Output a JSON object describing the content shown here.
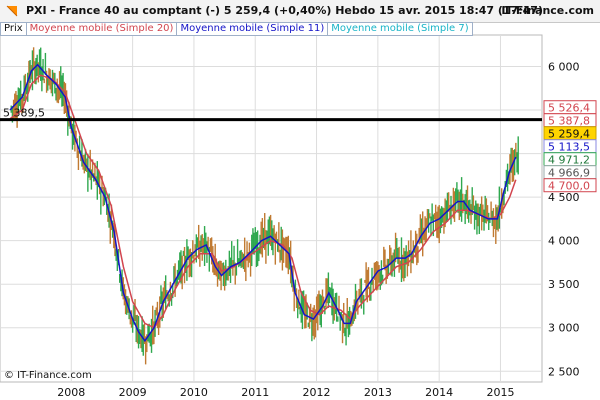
{
  "header": {
    "title": "PXI - France 40 au comptant (-)   5 259,4 (+0,40%)   Hebdo  15 avr. 2015 18:47 (17:47)",
    "brand": "IT-Finance.com"
  },
  "legend": {
    "prix": "Prix",
    "ma20": "Moyenne mobile (Simple 20)",
    "ma11": "Moyenne mobile (Simple 11)",
    "ma7": "Moyenne mobile (Simple 7)"
  },
  "footer": {
    "copyright": "© IT-Finance.com"
  },
  "colors": {
    "ma20": "#d2454f",
    "ma11": "#1414c8",
    "ma7": "#19b4c8",
    "up": "#2fa84f",
    "down": "#c07a32",
    "grid": "#dddddd",
    "highlight": "#ffd400"
  },
  "chart_data": {
    "type": "line",
    "x_axis": {
      "tick_labels": [
        "2008",
        "2009",
        "2010",
        "2011",
        "2012",
        "2013",
        "2014",
        "2015"
      ],
      "range": [
        2007.0,
        2015.4
      ]
    },
    "y_axis": {
      "tick_labels": [
        "2 500",
        "3 000",
        "3 500",
        "4 000",
        "4 500",
        "5 000",
        "5 500",
        "6 000"
      ],
      "ticks": [
        2500,
        3000,
        3500,
        4000,
        4500,
        5000,
        5500,
        6000
      ],
      "range": [
        2400,
        6350
      ],
      "position": "right"
    },
    "horizontal_line": {
      "value": 5389.5,
      "label": "5 389,5"
    },
    "price_labels": [
      {
        "label": "5 526,4",
        "value": 5526.4,
        "style": "red"
      },
      {
        "label": "5 387,8",
        "value": 5387.8,
        "style": "red"
      },
      {
        "label": "5 259,4",
        "value": 5259.4,
        "style": "current"
      },
      {
        "label": "5 113,5",
        "value": 5113.5,
        "style": "blue"
      },
      {
        "label": "4 971,2",
        "value": 4971.2,
        "style": "green"
      },
      {
        "label": "4 966,9",
        "value": 4966.9,
        "style": "grey"
      },
      {
        "label": "4 700,0",
        "value": 4700.0,
        "style": "red"
      }
    ],
    "series": [
      {
        "name": "Moyenne mobile (Simple 11)",
        "color": "#1414c8",
        "points": [
          [
            2007.0,
            5500
          ],
          [
            2007.2,
            5650
          ],
          [
            2007.35,
            5950
          ],
          [
            2007.45,
            6020
          ],
          [
            2007.6,
            5900
          ],
          [
            2007.75,
            5800
          ],
          [
            2007.9,
            5650
          ],
          [
            2008.0,
            5300
          ],
          [
            2008.2,
            4900
          ],
          [
            2008.4,
            4700
          ],
          [
            2008.55,
            4500
          ],
          [
            2008.7,
            4100
          ],
          [
            2008.85,
            3400
          ],
          [
            2009.0,
            3100
          ],
          [
            2009.1,
            2950
          ],
          [
            2009.2,
            2850
          ],
          [
            2009.35,
            3000
          ],
          [
            2009.5,
            3300
          ],
          [
            2009.7,
            3550
          ],
          [
            2009.9,
            3800
          ],
          [
            2010.05,
            3900
          ],
          [
            2010.2,
            3950
          ],
          [
            2010.35,
            3700
          ],
          [
            2010.45,
            3600
          ],
          [
            2010.6,
            3700
          ],
          [
            2010.75,
            3750
          ],
          [
            2010.9,
            3850
          ],
          [
            2011.1,
            4000
          ],
          [
            2011.25,
            4050
          ],
          [
            2011.4,
            3950
          ],
          [
            2011.55,
            3850
          ],
          [
            2011.65,
            3400
          ],
          [
            2011.8,
            3150
          ],
          [
            2011.95,
            3100
          ],
          [
            2012.1,
            3250
          ],
          [
            2012.2,
            3400
          ],
          [
            2012.35,
            3200
          ],
          [
            2012.45,
            3050
          ],
          [
            2012.55,
            3050
          ],
          [
            2012.65,
            3300
          ],
          [
            2012.8,
            3450
          ],
          [
            2013.0,
            3650
          ],
          [
            2013.15,
            3700
          ],
          [
            2013.3,
            3800
          ],
          [
            2013.45,
            3800
          ],
          [
            2013.55,
            3850
          ],
          [
            2013.7,
            4050
          ],
          [
            2013.85,
            4200
          ],
          [
            2014.0,
            4250
          ],
          [
            2014.15,
            4350
          ],
          [
            2014.3,
            4450
          ],
          [
            2014.4,
            4450
          ],
          [
            2014.5,
            4350
          ],
          [
            2014.65,
            4300
          ],
          [
            2014.8,
            4250
          ],
          [
            2014.95,
            4250
          ],
          [
            2015.05,
            4550
          ],
          [
            2015.15,
            4800
          ],
          [
            2015.25,
            4960
          ]
        ]
      },
      {
        "name": "Moyenne mobile (Simple 20)",
        "color": "#d2454f",
        "points": [
          [
            2007.0,
            5400
          ],
          [
            2007.2,
            5500
          ],
          [
            2007.35,
            5800
          ],
          [
            2007.5,
            5900
          ],
          [
            2007.7,
            5850
          ],
          [
            2007.9,
            5700
          ],
          [
            2008.05,
            5400
          ],
          [
            2008.25,
            5000
          ],
          [
            2008.45,
            4800
          ],
          [
            2008.65,
            4400
          ],
          [
            2008.85,
            3700
          ],
          [
            2009.0,
            3300
          ],
          [
            2009.2,
            3050
          ],
          [
            2009.35,
            3000
          ],
          [
            2009.5,
            3150
          ],
          [
            2009.7,
            3450
          ],
          [
            2009.9,
            3700
          ],
          [
            2010.1,
            3850
          ],
          [
            2010.3,
            3850
          ],
          [
            2010.45,
            3650
          ],
          [
            2010.65,
            3700
          ],
          [
            2010.85,
            3800
          ],
          [
            2011.05,
            3900
          ],
          [
            2011.25,
            4000
          ],
          [
            2011.45,
            3950
          ],
          [
            2011.6,
            3800
          ],
          [
            2011.75,
            3400
          ],
          [
            2011.9,
            3200
          ],
          [
            2012.05,
            3150
          ],
          [
            2012.2,
            3250
          ],
          [
            2012.4,
            3200
          ],
          [
            2012.55,
            3100
          ],
          [
            2012.7,
            3250
          ],
          [
            2012.9,
            3400
          ],
          [
            2013.1,
            3550
          ],
          [
            2013.3,
            3700
          ],
          [
            2013.5,
            3750
          ],
          [
            2013.7,
            3900
          ],
          [
            2013.9,
            4100
          ],
          [
            2014.1,
            4200
          ],
          [
            2014.3,
            4350
          ],
          [
            2014.45,
            4350
          ],
          [
            2014.65,
            4300
          ],
          [
            2014.85,
            4250
          ],
          [
            2015.0,
            4300
          ],
          [
            2015.15,
            4500
          ],
          [
            2015.25,
            4700
          ]
        ]
      }
    ]
  }
}
